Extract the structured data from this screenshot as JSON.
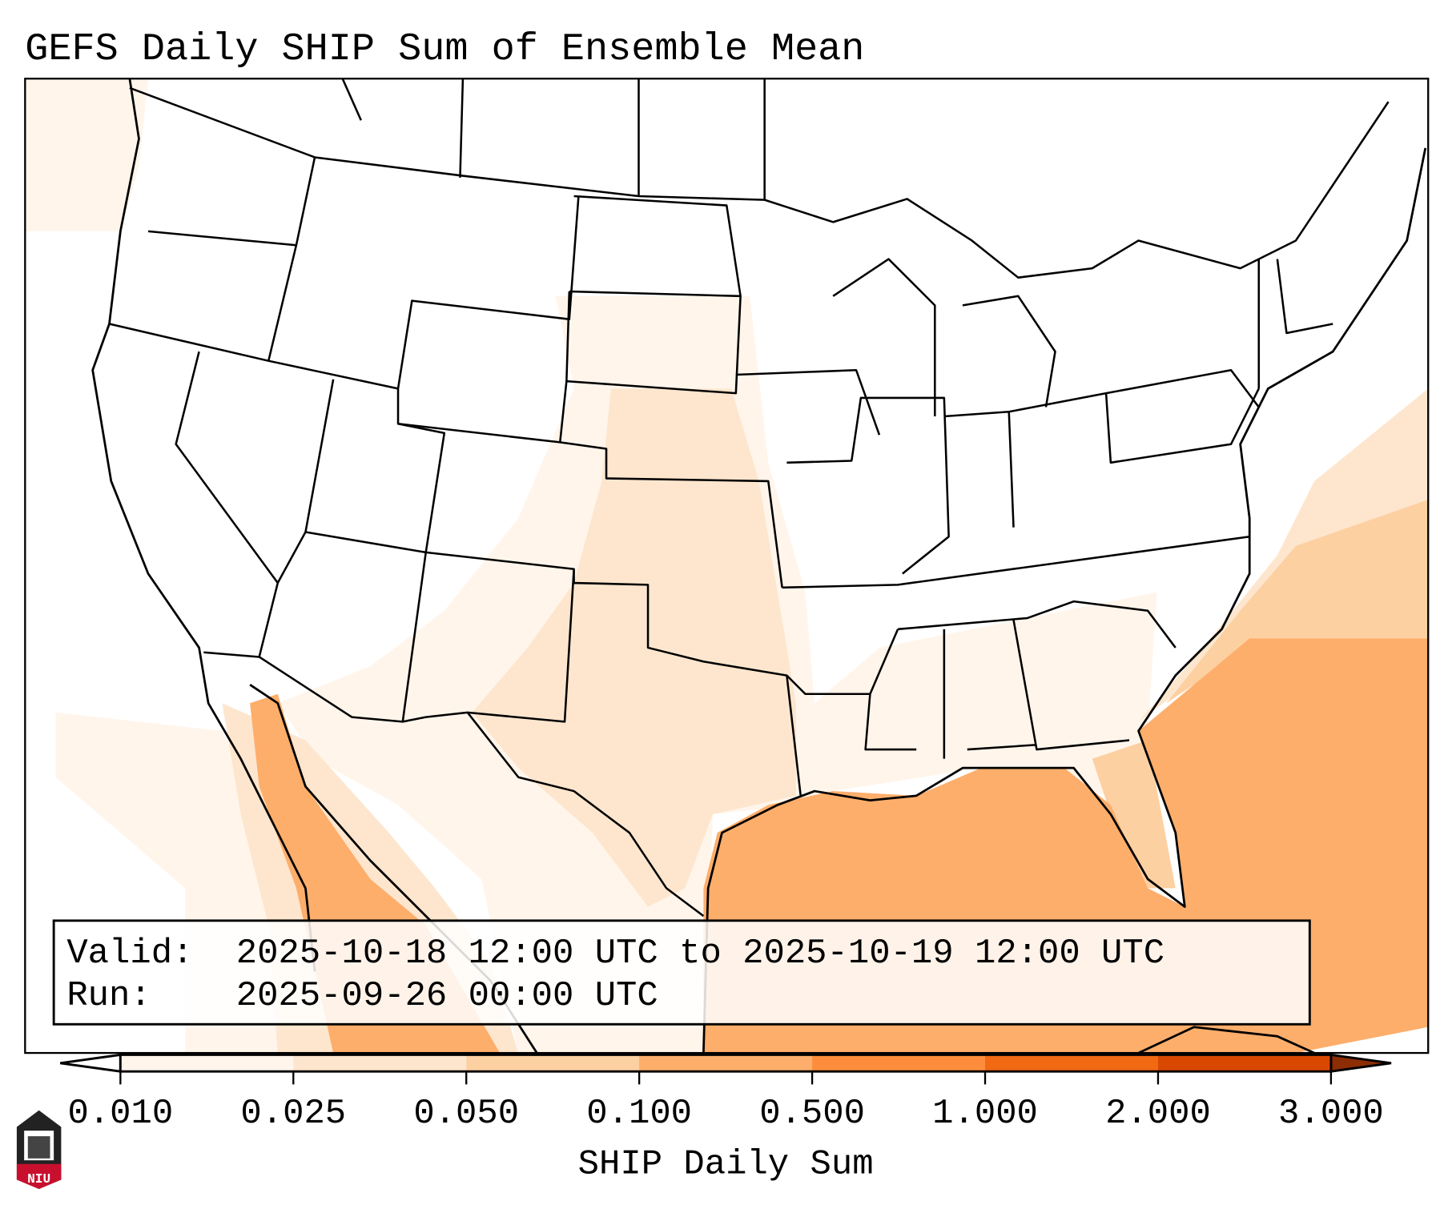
{
  "title": "GEFS Daily SHIP Sum of Ensemble Mean",
  "info_box": {
    "valid_label": "Valid:",
    "valid_value": "2025-10-18 12:00 UTC to 2025-10-19 12:00 UTC",
    "run_label": "Run:",
    "run_value": "2025-09-26 00:00 UTC"
  },
  "colorbar": {
    "label": "SHIP Daily Sum",
    "ticks": [
      "0.010",
      "0.025",
      "0.050",
      "0.100",
      "0.500",
      "1.000",
      "2.000",
      "3.000"
    ],
    "colors": [
      "#fff5eb",
      "#fee6ce",
      "#fdd0a2",
      "#fdae6b",
      "#fd8d3c",
      "#f16913",
      "#d94801"
    ],
    "under_color": "#ffffff",
    "over_color": "#8c2d04"
  },
  "logo": {
    "text": "NIU"
  }
}
